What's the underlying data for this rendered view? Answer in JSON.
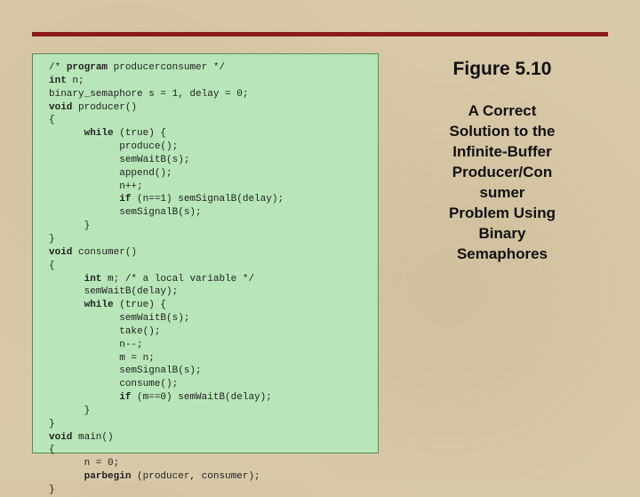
{
  "colors": {
    "background": "#d8c9a8",
    "rule": "#8b1a1a",
    "code_bg": "#b8e6b8",
    "code_border": "#5a8a5a",
    "text": "#111111"
  },
  "figure": {
    "label": "Figure 5.10",
    "caption_lines": [
      "A Correct",
      "Solution to the",
      "Infinite-Buffer",
      "Producer/Con",
      "sumer",
      "Problem Using",
      "Binary",
      "Semaphores"
    ]
  },
  "code": {
    "font_family": "Courier New",
    "font_size_pt": 8,
    "lines": [
      {
        "indent": 0,
        "text": "/* ",
        "bold_after": "program",
        "tail": " producerconsumer */"
      },
      {
        "indent": 0,
        "bold": "int",
        "tail": " n;"
      },
      {
        "indent": 0,
        "text": "binary_semaphore s = 1, delay = 0;"
      },
      {
        "indent": 0,
        "bold": "void",
        "tail": " producer()"
      },
      {
        "indent": 0,
        "text": "{"
      },
      {
        "indent": 2,
        "bold": "while",
        "tail": " (true) {"
      },
      {
        "indent": 4,
        "text": "produce();"
      },
      {
        "indent": 4,
        "text": "semWaitB(s);"
      },
      {
        "indent": 4,
        "text": "append();"
      },
      {
        "indent": 4,
        "text": "n++;"
      },
      {
        "indent": 4,
        "bold": "if",
        "tail": " (n==1) semSignalB(delay);"
      },
      {
        "indent": 4,
        "text": "semSignalB(s);"
      },
      {
        "indent": 2,
        "text": "}"
      },
      {
        "indent": 0,
        "text": "}"
      },
      {
        "indent": 0,
        "bold": "void",
        "tail": " consumer()"
      },
      {
        "indent": 0,
        "text": "{"
      },
      {
        "indent": 2,
        "bold": "int",
        "tail": " m; /* a local variable */"
      },
      {
        "indent": 2,
        "text": "semWaitB(delay);"
      },
      {
        "indent": 2,
        "bold": "while",
        "tail": " (true) {"
      },
      {
        "indent": 4,
        "text": "semWaitB(s);"
      },
      {
        "indent": 4,
        "text": "take();"
      },
      {
        "indent": 4,
        "text": "n--;"
      },
      {
        "indent": 4,
        "text": "m = n;"
      },
      {
        "indent": 4,
        "text": "semSignalB(s);"
      },
      {
        "indent": 4,
        "text": "consume();"
      },
      {
        "indent": 4,
        "bold": "if",
        "tail": " (m==0) semWaitB(delay);"
      },
      {
        "indent": 2,
        "text": "}"
      },
      {
        "indent": 0,
        "text": "}"
      },
      {
        "indent": 0,
        "bold": "void",
        "tail": " main()"
      },
      {
        "indent": 0,
        "text": "{"
      },
      {
        "indent": 2,
        "text": "n = 0;"
      },
      {
        "indent": 2,
        "bold": "parbegin",
        "tail": " (producer, consumer);"
      },
      {
        "indent": 0,
        "text": "}"
      }
    ]
  }
}
